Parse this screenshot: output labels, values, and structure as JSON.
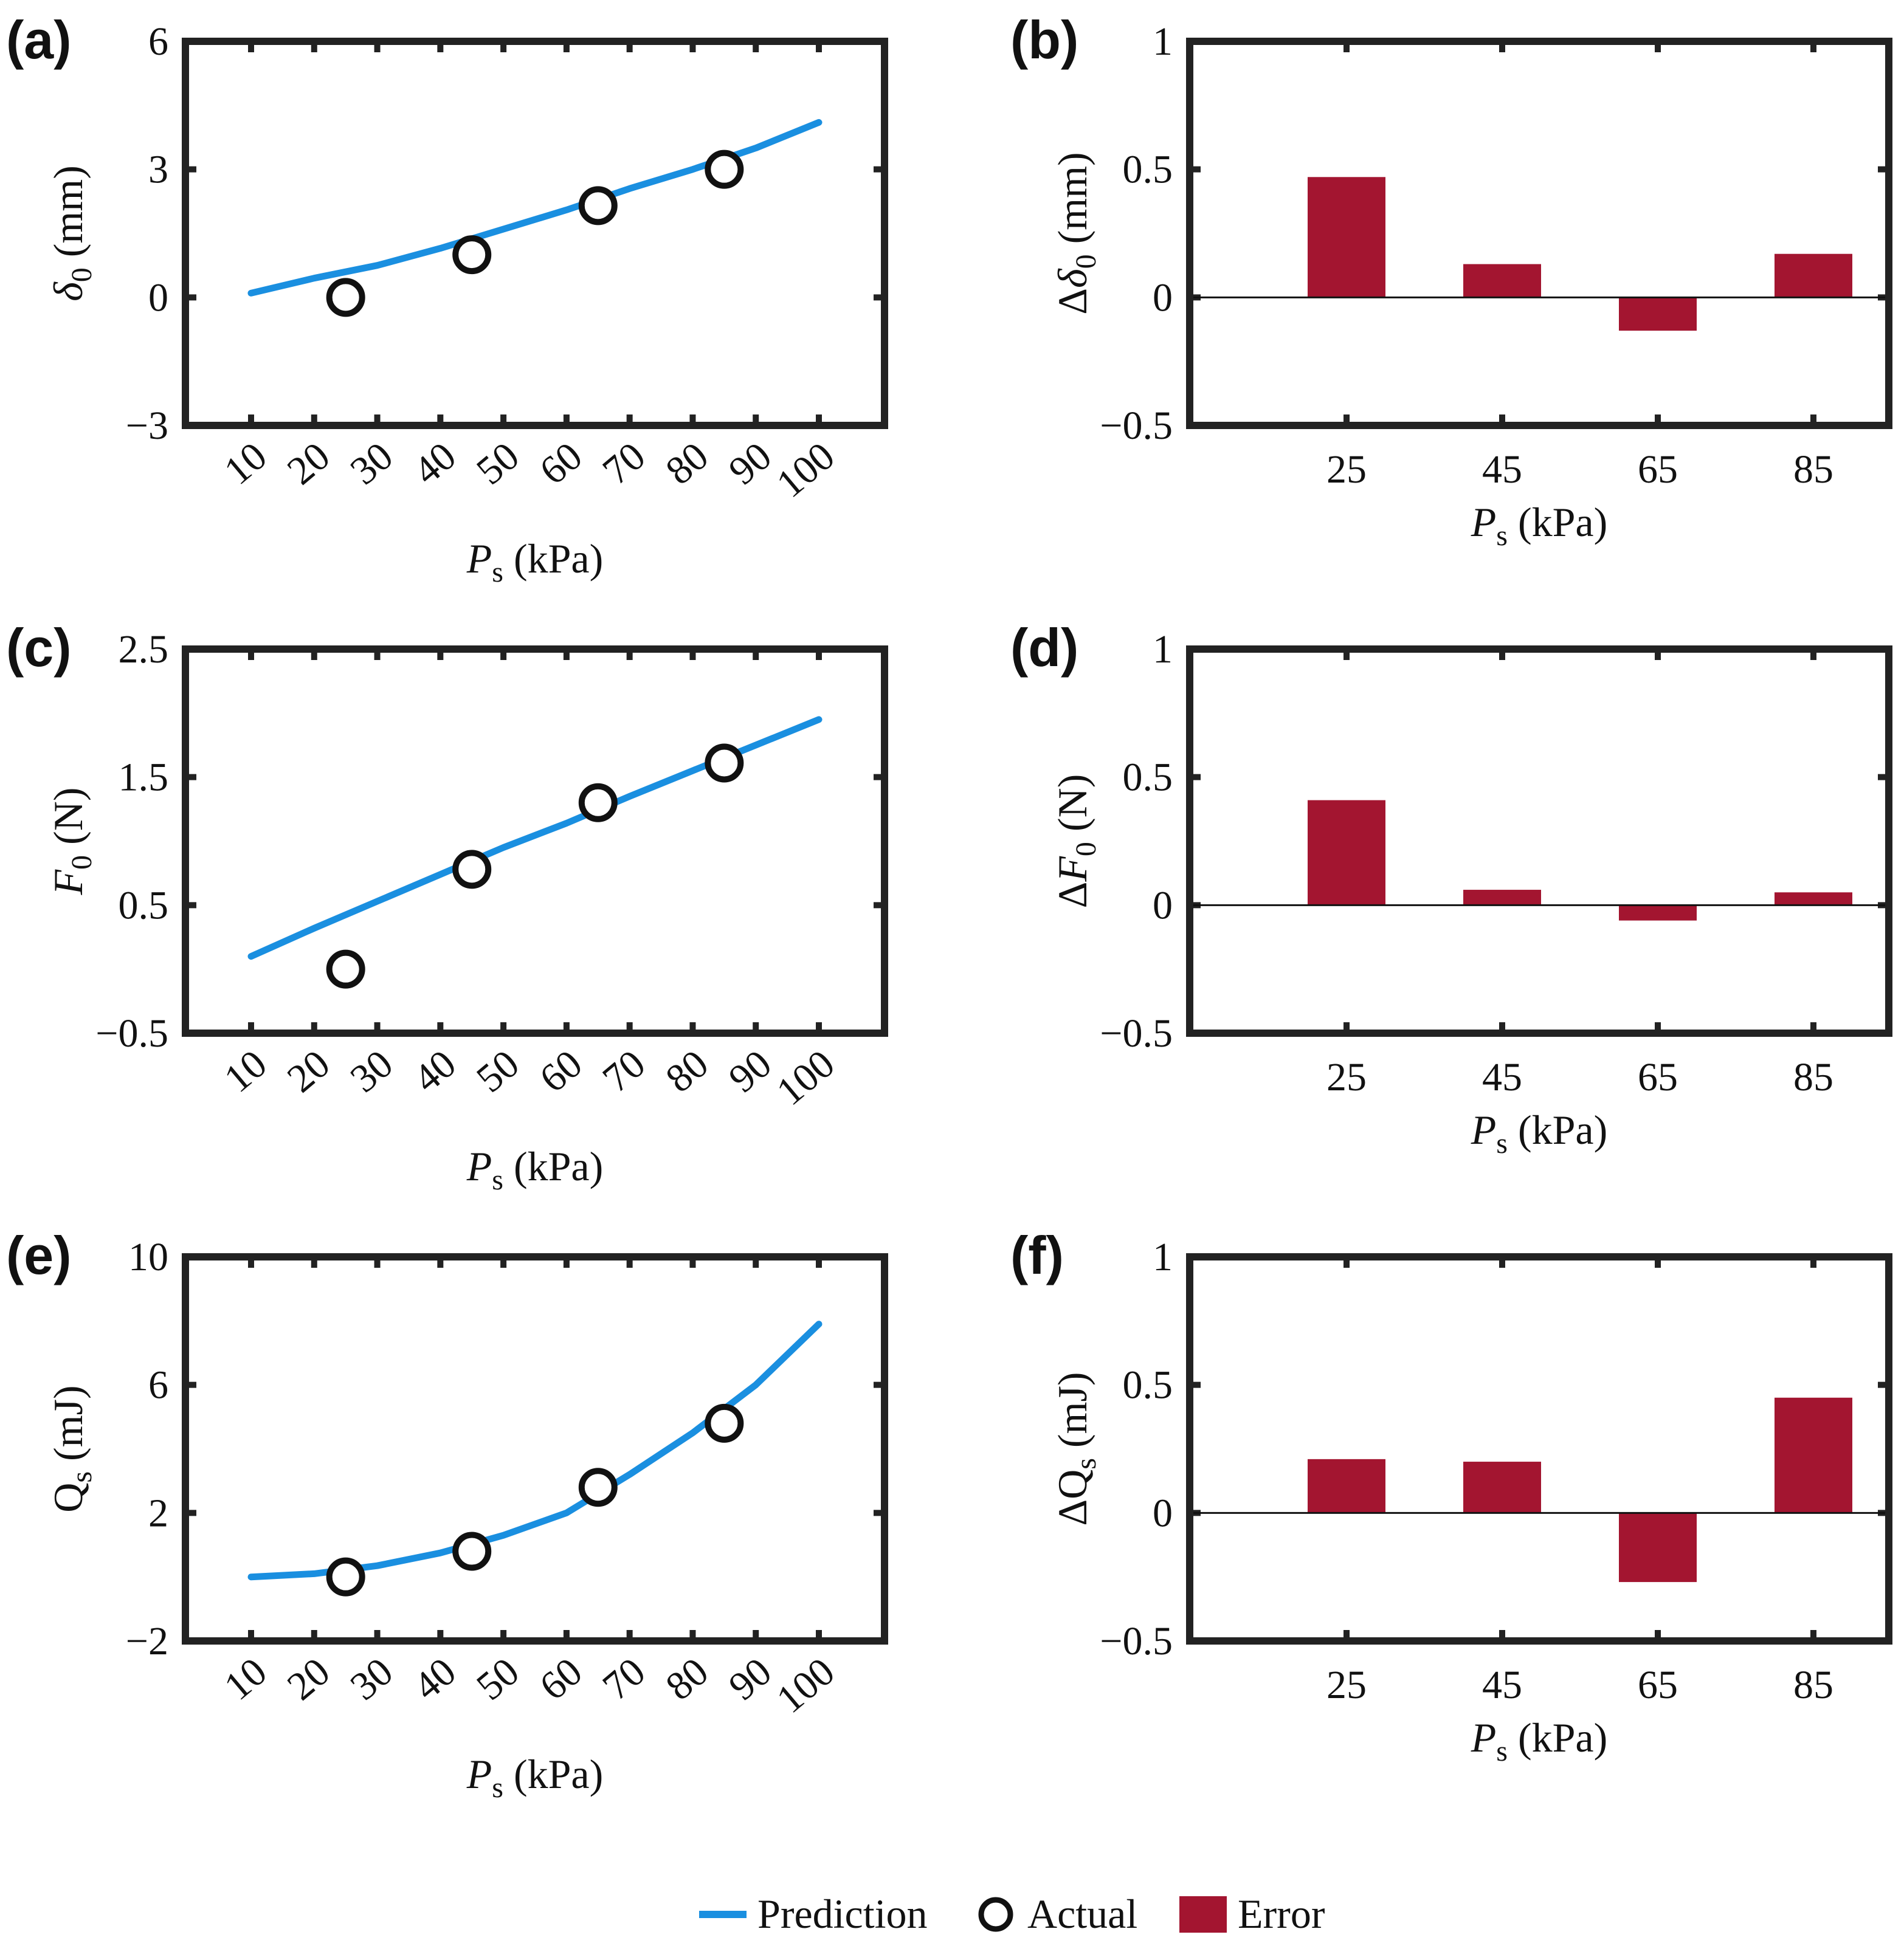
{
  "legend": {
    "prediction": "Prediction",
    "actual": "Actual",
    "error": "Error"
  },
  "colors": {
    "prediction": "#1a8fe0",
    "error": "#a31530",
    "axis": "#222222"
  },
  "chart_data": [
    {
      "id": "a",
      "label": "(a)",
      "type": "line",
      "title": "",
      "xlabel": "P_s (kPa)",
      "ylabel": "δ_0 (mm)",
      "x_ticks": [
        "10",
        "20",
        "30",
        "40",
        "50",
        "60",
        "70",
        "80",
        "90",
        "100"
      ],
      "xlim": [
        10,
        100
      ],
      "ylim": [
        -3,
        6
      ],
      "y_ticks": [
        "−3",
        "0",
        "3",
        "6"
      ],
      "series": [
        {
          "name": "Prediction",
          "x": [
            10,
            20,
            30,
            40,
            50,
            60,
            70,
            80,
            90,
            100
          ],
          "y": [
            0.1,
            0.45,
            0.75,
            1.15,
            1.6,
            2.05,
            2.55,
            3.0,
            3.5,
            4.1
          ]
        },
        {
          "name": "Actual",
          "x": [
            25,
            45,
            65,
            85
          ],
          "y": [
            0.0,
            1.0,
            2.15,
            3.0
          ]
        }
      ]
    },
    {
      "id": "b",
      "label": "(b)",
      "type": "bar",
      "title": "",
      "xlabel": "P_s (kPa)",
      "ylabel": "Δδ_0 (mm)",
      "categories": [
        "25",
        "45",
        "65",
        "85"
      ],
      "ylim": [
        -0.5,
        1
      ],
      "y_ticks": [
        "−0.5",
        "0",
        "0.5",
        "1"
      ],
      "series": [
        {
          "name": "Error",
          "values": [
            0.47,
            0.13,
            -0.13,
            0.17
          ]
        }
      ]
    },
    {
      "id": "c",
      "label": "(c)",
      "type": "line",
      "title": "",
      "xlabel": "P_s (kPa)",
      "ylabel": "F_0 (N)",
      "x_ticks": [
        "10",
        "20",
        "30",
        "40",
        "50",
        "60",
        "70",
        "80",
        "90",
        "100"
      ],
      "xlim": [
        10,
        100
      ],
      "ylim": [
        -0.5,
        2.5
      ],
      "y_ticks": [
        "−0.5",
        "0.5",
        "1.5",
        "2.5"
      ],
      "series": [
        {
          "name": "Prediction",
          "x": [
            10,
            20,
            30,
            40,
            50,
            60,
            70,
            80,
            90,
            100
          ],
          "y": [
            0.1,
            0.32,
            0.53,
            0.74,
            0.95,
            1.14,
            1.35,
            1.55,
            1.75,
            1.95
          ]
        },
        {
          "name": "Actual",
          "x": [
            25,
            45,
            65,
            85
          ],
          "y": [
            0.0,
            0.78,
            1.3,
            1.61
          ]
        }
      ]
    },
    {
      "id": "d",
      "label": "(d)",
      "type": "bar",
      "title": "",
      "xlabel": "P_s (kPa)",
      "ylabel": "ΔF_0 (N)",
      "categories": [
        "25",
        "45",
        "65",
        "85"
      ],
      "ylim": [
        -0.5,
        1
      ],
      "y_ticks": [
        "−0.5",
        "0",
        "0.5",
        "1"
      ],
      "series": [
        {
          "name": "Error",
          "values": [
            0.41,
            0.06,
            -0.06,
            0.05
          ]
        }
      ]
    },
    {
      "id": "e",
      "label": "(e)",
      "type": "line",
      "title": "",
      "xlabel": "P_s (kPa)",
      "ylabel": "Q_s (mJ)",
      "x_ticks": [
        "10",
        "20",
        "30",
        "40",
        "50",
        "60",
        "70",
        "80",
        "90",
        "100"
      ],
      "xlim": [
        10,
        100
      ],
      "ylim": [
        -2,
        10
      ],
      "y_ticks": [
        "−2",
        "2",
        "6",
        "10"
      ],
      "series": [
        {
          "name": "Prediction",
          "x": [
            10,
            20,
            30,
            40,
            50,
            60,
            70,
            80,
            90,
            100
          ],
          "y": [
            0.0,
            0.1,
            0.35,
            0.75,
            1.3,
            2.0,
            3.2,
            4.5,
            6.0,
            7.9
          ]
        },
        {
          "name": "Actual",
          "x": [
            25,
            45,
            65,
            85
          ],
          "y": [
            0.0,
            0.8,
            2.8,
            4.8
          ]
        }
      ]
    },
    {
      "id": "f",
      "label": "(f)",
      "type": "bar",
      "title": "",
      "xlabel": "P_s (kPa)",
      "ylabel": "ΔQ_s (mJ)",
      "categories": [
        "25",
        "45",
        "65",
        "85"
      ],
      "ylim": [
        -0.5,
        1
      ],
      "y_ticks": [
        "−0.5",
        "0",
        "0.5",
        "1"
      ],
      "series": [
        {
          "name": "Error",
          "values": [
            0.21,
            0.2,
            -0.27,
            0.45
          ]
        }
      ]
    }
  ]
}
